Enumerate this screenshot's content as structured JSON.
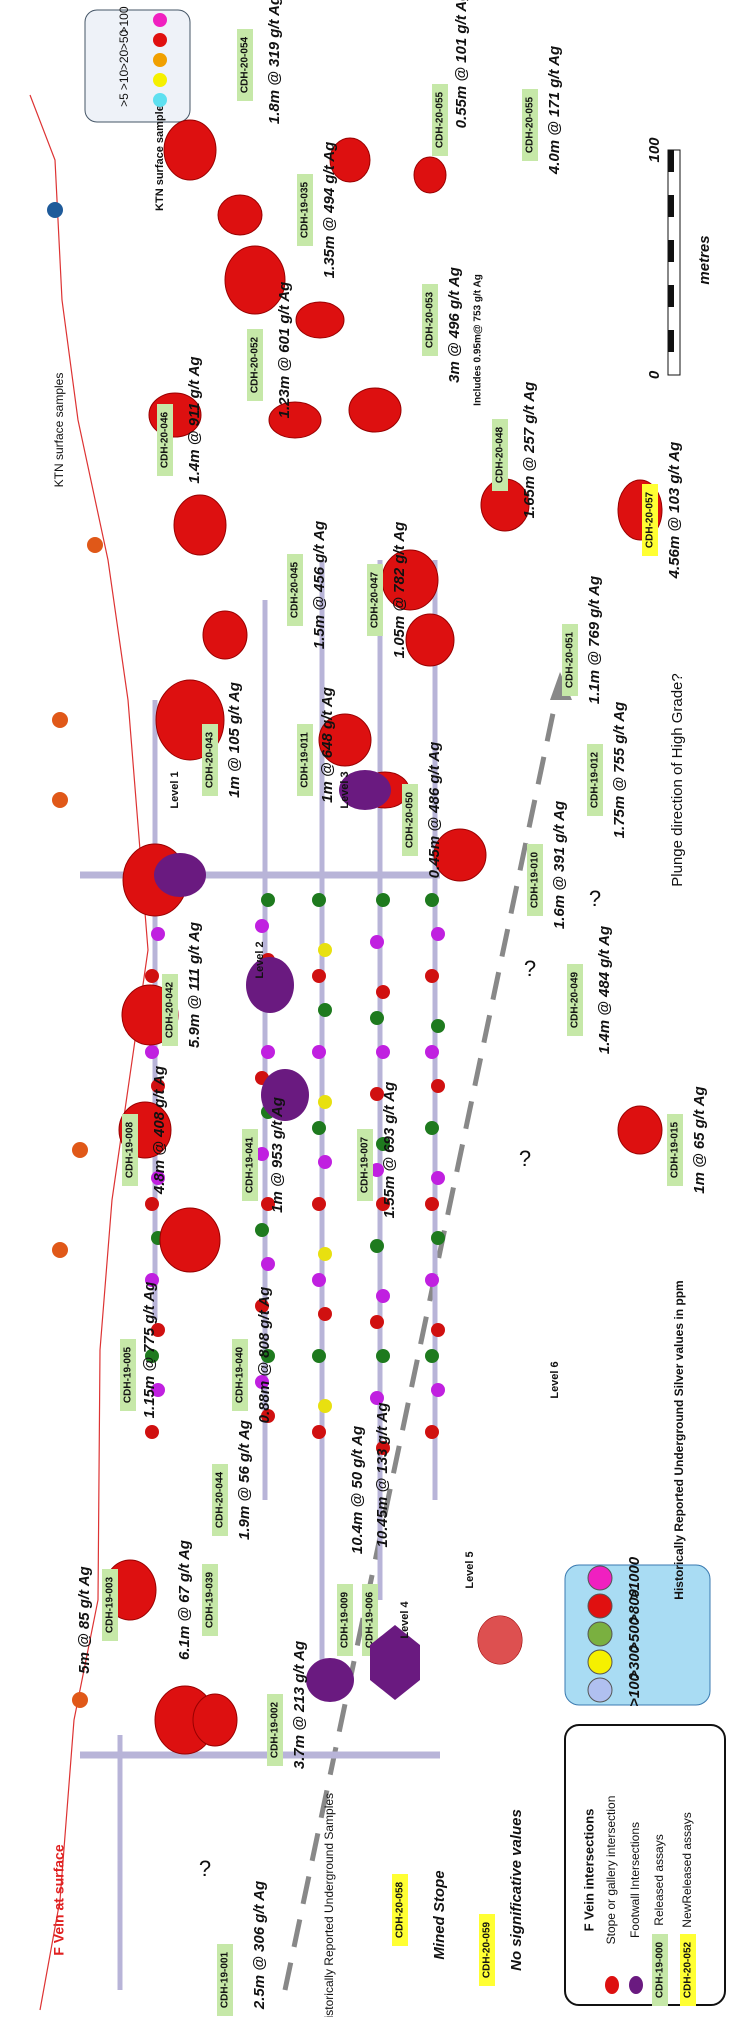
{
  "drill_holes": [
    {
      "id": "CDH-20-054",
      "result": "1.8m @ 319 g/t Ag"
    },
    {
      "id": "CDH-20-055",
      "result": "0.55m @ 101 g/t Ag"
    },
    {
      "id": "CDH-20-055",
      "result": "4.0m @ 171 g/t Ag"
    },
    {
      "id": "CDH-19-035",
      "result": "1.35m @ 494 g/t Ag"
    },
    {
      "id": "CDH-20-052",
      "result": "1.23m @ 601 g/t Ag"
    },
    {
      "id": "CDH-20-053",
      "result": "3m @ 496 g/t Ag",
      "note": "Includes 0.95m@ 753 g/t Ag"
    },
    {
      "id": "CDH-20-046",
      "result": "1.4m @ 911 g/t Ag"
    },
    {
      "id": "CDH-20-048",
      "result": "1.65m @ 257 g/t Ag"
    },
    {
      "id": "CDH-20-057",
      "result": "4.56m @ 103 g/t Ag"
    },
    {
      "id": "CDH-20-045",
      "result": "1.5m @ 456 g/t Ag"
    },
    {
      "id": "CDH-20-047",
      "result": "1.05m @ 782 g/t Ag"
    },
    {
      "id": "CDH-20-051",
      "result": "1.1m @ 769 g/t Ag"
    },
    {
      "id": "CDH-20-043",
      "result": "1m @ 105 g/t Ag"
    },
    {
      "id": "CDH-19-011",
      "result": "1m @ 648 g/t Ag"
    },
    {
      "id": "CDH-19-012",
      "result": "1.75m @ 755 g/t Ag"
    },
    {
      "id": "CDH-20-050",
      "result": "0.45m @ 486 g/t Ag"
    },
    {
      "id": "CDH-19-010",
      "result": "1.6m @ 391 g/t Ag"
    },
    {
      "id": "CDH-20-042",
      "result": "5.9m @ 111 g/t Ag"
    },
    {
      "id": "CDH-20-049",
      "result": "1.4m @ 484 g/t Ag"
    },
    {
      "id": "CDH-19-008",
      "result": "4.8m @ 408 g/t Ag"
    },
    {
      "id": "CDH-19-041",
      "result": "1m @ 953 g/t Ag"
    },
    {
      "id": "CDH-19-007",
      "result": "1.55m @ 693 g/t Ag"
    },
    {
      "id": "CDH-19-015",
      "result": "1m @ 65 g/t Ag"
    },
    {
      "id": "CDH-19-005",
      "result": "1.15m @ 775 g/t Ag"
    },
    {
      "id": "CDH-19-040",
      "result": "0.88m @ 808 g/t Ag"
    },
    {
      "id": "CDH-20-044",
      "result": "1.9m @ 56 g/t Ag"
    },
    {
      "id": "CDH-19-009",
      "result": "10.4m @ 50 g/t Ag"
    },
    {
      "id": "CDH-19-006",
      "result": "10.45m @ 133 g/t Ag"
    },
    {
      "id": "CDH-19-039",
      "result": "6.1m @ 67 g/t Ag"
    },
    {
      "id": "CDH-19-003",
      "result": "5m @ 85 g/t Ag"
    },
    {
      "id": "CDH-19-002",
      "result": "3.7m @ 213 g/t Ag"
    },
    {
      "id": "CDH-19-001",
      "result": "2.5m @ 306 g/t Ag"
    }
  ],
  "new_holes": [
    {
      "id": "CDH-20-058",
      "result": "Mined Stope"
    },
    {
      "id": "CDH-20-059",
      "result": "No significative values"
    }
  ],
  "levels": [
    "Level 1",
    "Level 2",
    "Level 3",
    "Level 4",
    "Level 5",
    "Level 6"
  ],
  "annotations": {
    "ktn_top": "KTN surface samples",
    "ktn_mid": "KTN surface samples",
    "f_vein": "F Vein at surface",
    "historic": "Historically Reported Underground Samples",
    "plunge": "Plunge direction of High Grade?",
    "q1": "?",
    "q2": "?",
    "q3": "?",
    "q4": "?"
  },
  "surface_legend": {
    "labels": [
      ">5",
      ">10",
      ">20",
      ">50",
      ">100"
    ]
  },
  "underground_legend": {
    "title": "Historically Reported Underground Silver values in ppm",
    "labels": [
      ">100",
      ">300",
      ">500",
      ">800",
      ">1000"
    ]
  },
  "scale": {
    "start": "0",
    "end": "100",
    "unit": "metres"
  },
  "legend": {
    "title": "F Vein intersections",
    "items": [
      "Stope or gallery intersection",
      "Footwall Intersections"
    ],
    "released_id": "CDH-19-000",
    "released": "Released assays",
    "new_id": "CDH-20-052",
    "new": "NewReleased assays"
  }
}
